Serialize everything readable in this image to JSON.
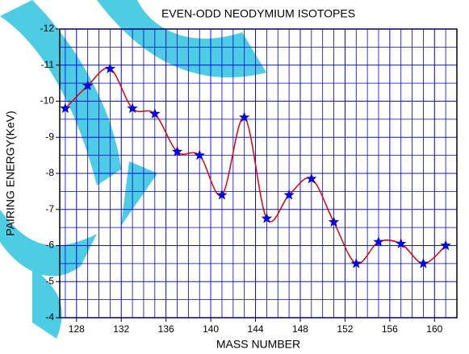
{
  "chart_data": {
    "type": "line",
    "title": "EVEN-ODD NEODYMIUM ISOTOPES",
    "x_label": "MASS NUMBER",
    "y_label": "PAIRING   ENERGY(KeV)",
    "x": [
      127,
      129,
      131,
      133,
      135,
      137,
      139,
      141,
      143,
      145,
      147,
      149,
      151,
      153,
      155,
      157,
      159,
      161
    ],
    "series": [
      {
        "color": "#e00000",
        "marker_color": "#0000e0",
        "values": [
          -9.8,
          -10.43,
          -10.9,
          -9.8,
          -9.65,
          -8.6,
          -8.5,
          -7.4,
          -9.55,
          -6.75,
          -7.4,
          -7.85,
          -6.65,
          -5.5,
          -6.1,
          -6.05,
          -5.5,
          -6.0
        ]
      }
    ],
    "xlim": [
      126.5,
      162
    ],
    "ylim": [
      -4,
      -12
    ],
    "xticks": [
      128,
      132,
      136,
      140,
      144,
      148,
      152,
      156,
      160
    ],
    "yticks": [
      -12,
      -11,
      -10,
      -9,
      -8,
      -7,
      -6,
      -5,
      -4
    ],
    "grid": true,
    "grid_color": "#0000e0"
  }
}
